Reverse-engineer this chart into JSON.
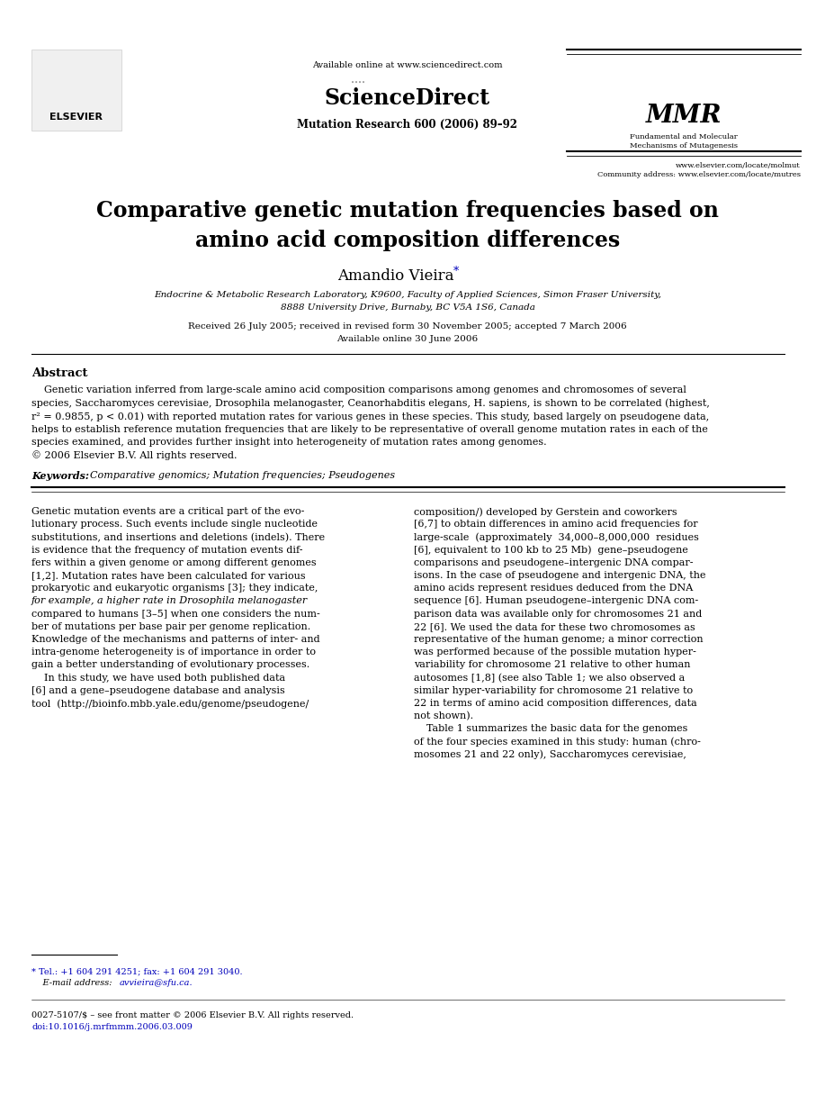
{
  "background_color": "#ffffff",
  "page_width": 9.07,
  "page_height": 12.37,
  "dpi": 100,
  "header": {
    "available_online_text": "Available online at www.sciencedirect.com",
    "journal_name": "Mutation Research 600 (2006) 89–92",
    "sciencedirect_text": "ScienceDirect",
    "mmr_text1": "Fundamental and Molecular",
    "mmr_text2": "Mechanisms of Mutagenesis",
    "elsevier_text": "ELSEVIER",
    "url1": "www.elsevier.com/locate/molmut",
    "url2": "Community address: www.elsevier.com/locate/mutres"
  },
  "title": {
    "line1": "Comparative genetic mutation frequencies based on",
    "line2": "amino acid composition differences"
  },
  "author": {
    "name": "Amandio Vieira",
    "asterisk": "*"
  },
  "affiliation": {
    "line1": "Endocrine & Metabolic Research Laboratory, K9600, Faculty of Applied Sciences, Simon Fraser University,",
    "line2": "8888 University Drive, Burnaby, BC V5A 1S6, Canada"
  },
  "received": {
    "line1": "Received 26 July 2005; received in revised form 30 November 2005; accepted 7 March 2006",
    "line2": "Available online 30 June 2006"
  },
  "abstract": {
    "heading": "Abstract",
    "indent_line1": "    Genetic variation inferred from large-scale amino acid composition comparisons among genomes and chromosomes of several",
    "lines": [
      "    Genetic variation inferred from large-scale amino acid composition comparisons among genomes and chromosomes of several",
      "species, Saccharomyces cerevisiae, Drosophila melanogaster, Ceanorhabditis elegans, H. sapiens, is shown to be correlated (highest,",
      "r² = 0.9855, p < 0.01) with reported mutation rates for various genes in these species. This study, based largely on pseudogene data,",
      "helps to establish reference mutation frequencies that are likely to be representative of overall genome mutation rates in each of the",
      "species examined, and provides further insight into heterogeneity of mutation rates among genomes.",
      "© 2006 Elsevier B.V. All rights reserved."
    ],
    "keywords_label": "Keywords:",
    "keywords_text": "  Comparative genomics; Mutation frequencies; Pseudogenes"
  },
  "left_body": [
    "Genetic mutation events are a critical part of the evo-",
    "lutionary process. Such events include single nucleotide",
    "substitutions, and insertions and deletions (indels). There",
    "is evidence that the frequency of mutation events dif-",
    "fers within a given genome or among different genomes",
    "[1,2]. Mutation rates have been calculated for various",
    "prokaryotic and eukaryotic organisms [3]; they indicate,",
    "for example, a higher rate in Drosophila melanogaster",
    "compared to humans [3–5] when one considers the num-",
    "ber of mutations per base pair per genome replication.",
    "Knowledge of the mechanisms and patterns of inter- and",
    "intra-genome heterogeneity is of importance in order to",
    "gain a better understanding of evolutionary processes.",
    "    In this study, we have used both published data",
    "[6] and a gene–pseudogene database and analysis",
    "tool  (http://bioinfo.mbb.yale.edu/genome/pseudogene/"
  ],
  "right_body": [
    "composition/) developed by Gerstein and coworkers",
    "[6,7] to obtain differences in amino acid frequencies for",
    "large-scale  (approximately  34,000–8,000,000  residues",
    "[6], equivalent to 100 kb to 25 Mb)  gene–pseudogene",
    "comparisons and pseudogene–intergenic DNA compar-",
    "isons. In the case of pseudogene and intergenic DNA, the",
    "amino acids represent residues deduced from the DNA",
    "sequence [6]. Human pseudogene–intergenic DNA com-",
    "parison data was available only for chromosomes 21 and",
    "22 [6]. We used the data for these two chromosomes as",
    "representative of the human genome; a minor correction",
    "was performed because of the possible mutation hyper-",
    "variability for chromosome 21 relative to other human",
    "autosomes [1,8] (see also Table 1; we also observed a",
    "similar hyper-variability for chromosome 21 relative to",
    "22 in terms of amino acid composition differences, data",
    "not shown).",
    "    Table 1 summarizes the basic data for the genomes",
    "of the four species examined in this study: human (chro-",
    "mosomes 21 and 22 only), Saccharomyces cerevisiae,"
  ],
  "footnote": {
    "tel": "* Tel.: +1 604 291 4251; fax: +1 604 291 3040.",
    "email_label": "    E-mail address: ",
    "email": "avvieira@sfu.ca.",
    "copyright": "0027-5107/$ – see front matter © 2006 Elsevier B.V. All rights reserved.",
    "doi": "doi:10.1016/j.mrfmmm.2006.03.009"
  },
  "colors": {
    "black": "#000000",
    "blue_link": "#0000BB",
    "gray": "#666666"
  }
}
